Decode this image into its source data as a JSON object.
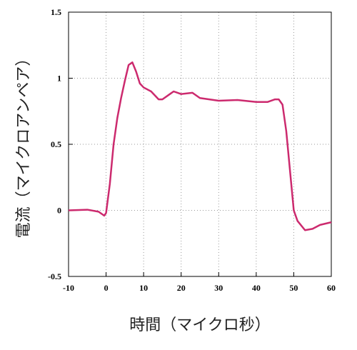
{
  "chart_data": {
    "type": "line",
    "x_label": "時間（マイクロ秒）",
    "y_label": "電流（マイクロアンペア）",
    "x": [
      -10,
      -5,
      -2,
      -0.5,
      0,
      1,
      2,
      3,
      4,
      5,
      6,
      7,
      8,
      9,
      10,
      12,
      14,
      15,
      17,
      18,
      20,
      23,
      25,
      30,
      35,
      40,
      43,
      45,
      46,
      47,
      48,
      49,
      50,
      51,
      53,
      55,
      57,
      60
    ],
    "series": [
      {
        "color": "#cc2a6e",
        "values": [
          0,
          0.005,
          -0.01,
          -0.04,
          -0.02,
          0.2,
          0.5,
          0.7,
          0.85,
          0.98,
          1.1,
          1.12,
          1.05,
          0.96,
          0.93,
          0.9,
          0.84,
          0.84,
          0.88,
          0.9,
          0.88,
          0.89,
          0.85,
          0.83,
          0.835,
          0.82,
          0.82,
          0.84,
          0.84,
          0.8,
          0.6,
          0.3,
          0.0,
          -0.08,
          -0.15,
          -0.14,
          -0.11,
          -0.09
        ]
      }
    ],
    "xlim": [
      -10,
      60
    ],
    "xticks": [
      -10,
      0,
      10,
      20,
      30,
      40,
      50,
      60
    ],
    "ylim": [
      -0.5,
      1.5
    ],
    "yticks": [
      -0.5,
      0,
      0.5,
      1,
      1.5
    ],
    "grid": true
  }
}
